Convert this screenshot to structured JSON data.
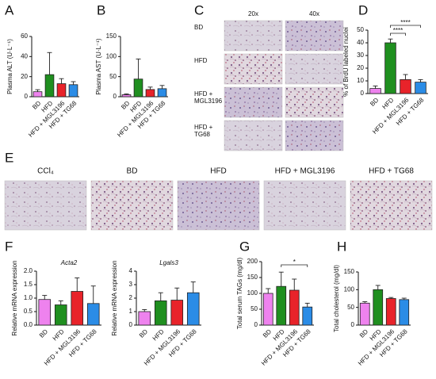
{
  "chart_data": [
    {
      "type": "bar",
      "panel": "A",
      "y_label": "Plasma ALT (U·L⁻¹)",
      "categories": [
        "BD",
        "HFD",
        "HFD + MGL3196",
        "HFD + TG68"
      ],
      "values": [
        5,
        22,
        13,
        12
      ],
      "errors": [
        2,
        22,
        5,
        3
      ],
      "colors": [
        "#ee82ee",
        "#1f8f1f",
        "#e8232a",
        "#2b8ce6"
      ],
      "ylim": [
        0,
        60
      ],
      "yticks": [
        0,
        20,
        40,
        60
      ]
    },
    {
      "type": "bar",
      "panel": "B",
      "y_label": "Plasma AST (U·L⁻¹)",
      "categories": [
        "BD",
        "HFD",
        "HFD + MGL3196",
        "HFD + TG68"
      ],
      "values": [
        5,
        44,
        18,
        20
      ],
      "errors": [
        2,
        50,
        6,
        8
      ],
      "colors": [
        "#ee82ee",
        "#1f8f1f",
        "#e8232a",
        "#2b8ce6"
      ],
      "ylim": [
        0,
        150
      ],
      "yticks": [
        0,
        50,
        100,
        150
      ]
    },
    {
      "type": "micrograph",
      "panel": "C",
      "columns": [
        "20x",
        "40x"
      ],
      "rows": [
        "BD",
        "HFD",
        "HFD + MGL3196",
        "HFD + TG68"
      ]
    },
    {
      "type": "bar",
      "panel": "D",
      "y_label": "% of BrdU labeled nuclei",
      "categories": [
        "BD",
        "HFD",
        "HFD + MGL3196",
        "HFD + TG68"
      ],
      "values": [
        4,
        40,
        11,
        9
      ],
      "errors": [
        2,
        3,
        4,
        2
      ],
      "colors": [
        "#ee82ee",
        "#1f8f1f",
        "#e8232a",
        "#2b8ce6"
      ],
      "ylim": [
        0,
        50
      ],
      "yticks": [
        0,
        10,
        20,
        30,
        40,
        50
      ],
      "comparisons": [
        {
          "from": 1,
          "to": 2,
          "label": "****"
        },
        {
          "from": 1,
          "to": 3,
          "label": "****"
        }
      ]
    },
    {
      "type": "micrograph",
      "panel": "E",
      "columns": [
        "CCl₄",
        "BD",
        "HFD",
        "HFD + MGL3196",
        "HFD + TG68"
      ]
    },
    {
      "type": "bar",
      "panel": "F",
      "title": "Acta2",
      "y_label": "Relative mRNA expression",
      "categories": [
        "BD",
        "HFD",
        "HFD + MGL3196",
        "HFD + TG68"
      ],
      "values": [
        0.95,
        0.75,
        1.25,
        0.8
      ],
      "errors": [
        0.15,
        0.15,
        0.5,
        0.65
      ],
      "colors": [
        "#ee82ee",
        "#1f8f1f",
        "#e8232a",
        "#2b8ce6"
      ],
      "ylim": [
        0,
        2
      ],
      "yticks": [
        {
          "value": 0,
          "label": "0.0"
        },
        0.5,
        {
          "value": 1,
          "label": "1.0"
        },
        1.5,
        {
          "value": 2,
          "label": "2.0"
        }
      ]
    },
    {
      "type": "bar",
      "title": "Lgals3",
      "y_label": "Relative mRNA expression",
      "categories": [
        "BD",
        "HFD",
        "HFD + MGL3196",
        "HFD + TG68"
      ],
      "values": [
        1.0,
        1.8,
        1.85,
        2.4
      ],
      "errors": [
        0.15,
        0.6,
        0.9,
        0.8
      ],
      "colors": [
        "#ee82ee",
        "#1f8f1f",
        "#e8232a",
        "#2b8ce6"
      ],
      "ylim": [
        0,
        4
      ],
      "yticks": [
        0,
        1,
        2,
        3,
        4
      ]
    },
    {
      "type": "bar",
      "panel": "G",
      "y_label": "Total serum TAGs (mg/dl)",
      "categories": [
        "BD",
        "HFD",
        "HFD + MGL3196",
        "HFD + TG68"
      ],
      "values": [
        100,
        122,
        110,
        57
      ],
      "errors": [
        15,
        45,
        35,
        12
      ],
      "colors": [
        "#ee82ee",
        "#1f8f1f",
        "#e8232a",
        "#2b8ce6"
      ],
      "ylim": [
        0,
        200
      ],
      "yticks": [
        0,
        50,
        100,
        150,
        200
      ],
      "comparisons": [
        {
          "from": 1,
          "to": 3,
          "label": "*"
        }
      ]
    },
    {
      "type": "bar",
      "panel": "H",
      "y_label": "Total cholesterol (mg/dl)",
      "categories": [
        "BD",
        "HFD",
        "HFD + MGL3196",
        "HFD + TG68"
      ],
      "values": [
        62,
        100,
        75,
        72
      ],
      "errors": [
        4,
        12,
        3,
        4
      ],
      "colors": [
        "#ee82ee",
        "#1f8f1f",
        "#e8232a",
        "#2b8ce6"
      ],
      "ylim": [
        0,
        150
      ],
      "yticks": [
        0,
        50,
        100,
        150
      ]
    }
  ]
}
